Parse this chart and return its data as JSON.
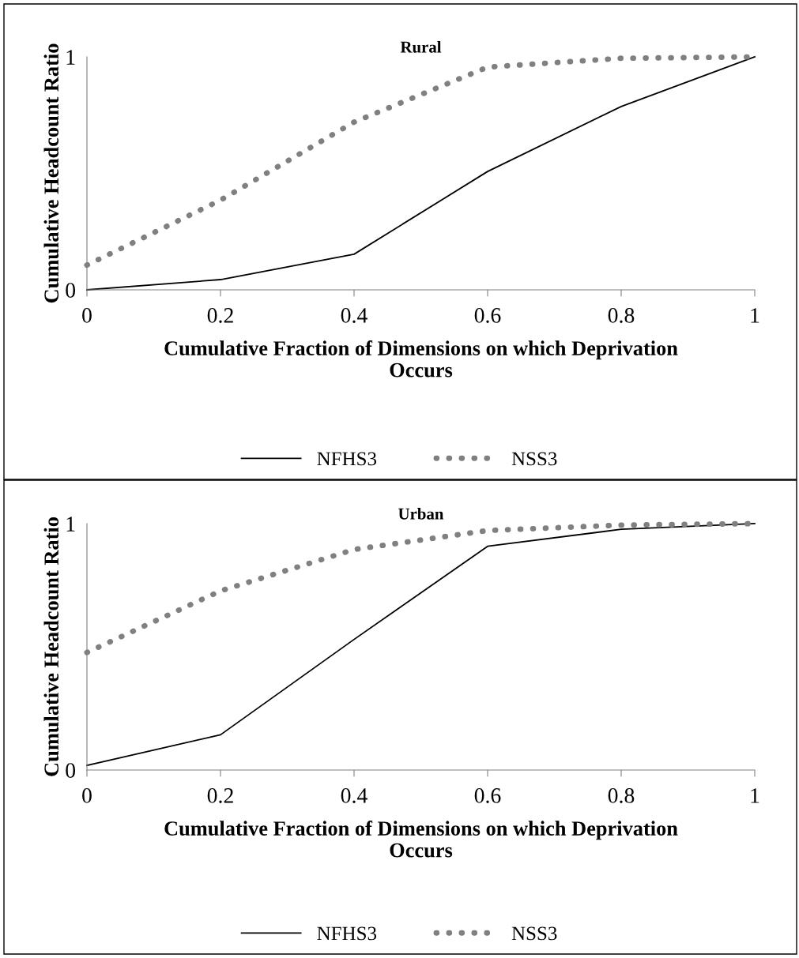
{
  "chart_data": [
    {
      "type": "line",
      "title": "Rural",
      "xlabel": "Cumulative Fraction of Dimensions on which Deprivation Occurs",
      "ylabel": "Cumulative Headcount Ratio",
      "x": [
        0,
        0.2,
        0.4,
        0.6,
        0.8,
        1
      ],
      "xlim": [
        0,
        1
      ],
      "xticks": [
        0,
        0.2,
        0.4,
        0.6,
        0.8,
        1
      ],
      "ylim": [
        0,
        1
      ],
      "yticks": [
        0,
        1
      ],
      "grid": false,
      "legend": "bottom",
      "series": [
        {
          "name": "NFHS3",
          "color": "#000000",
          "line_style": "solid",
          "values": [
            0,
            0.044,
            0.153,
            0.508,
            0.787,
            1
          ]
        },
        {
          "name": "NSS3",
          "color": "#808080",
          "line_style": "dotted",
          "values": [
            0.106,
            0.385,
            0.72,
            0.956,
            0.994,
            1
          ]
        }
      ]
    },
    {
      "type": "line",
      "title": "Urban",
      "xlabel": "Cumulative Fraction of Dimensions on which Deprivation Occurs",
      "ylabel": "Cumulative Headcount Ratio",
      "x": [
        0,
        0.2,
        0.4,
        0.6,
        0.8,
        1
      ],
      "xlim": [
        0,
        1
      ],
      "xticks": [
        0,
        0.2,
        0.4,
        0.6,
        0.8,
        1
      ],
      "ylim": [
        0,
        1
      ],
      "yticks": [
        0,
        1
      ],
      "grid": false,
      "legend": "bottom",
      "series": [
        {
          "name": "NFHS3",
          "color": "#000000",
          "line_style": "solid",
          "values": [
            0.019,
            0.143,
            0.53,
            0.908,
            0.977,
            1
          ]
        },
        {
          "name": "NSS3",
          "color": "#808080",
          "line_style": "dotted",
          "values": [
            0.477,
            0.727,
            0.895,
            0.972,
            0.994,
            1
          ]
        }
      ]
    }
  ]
}
